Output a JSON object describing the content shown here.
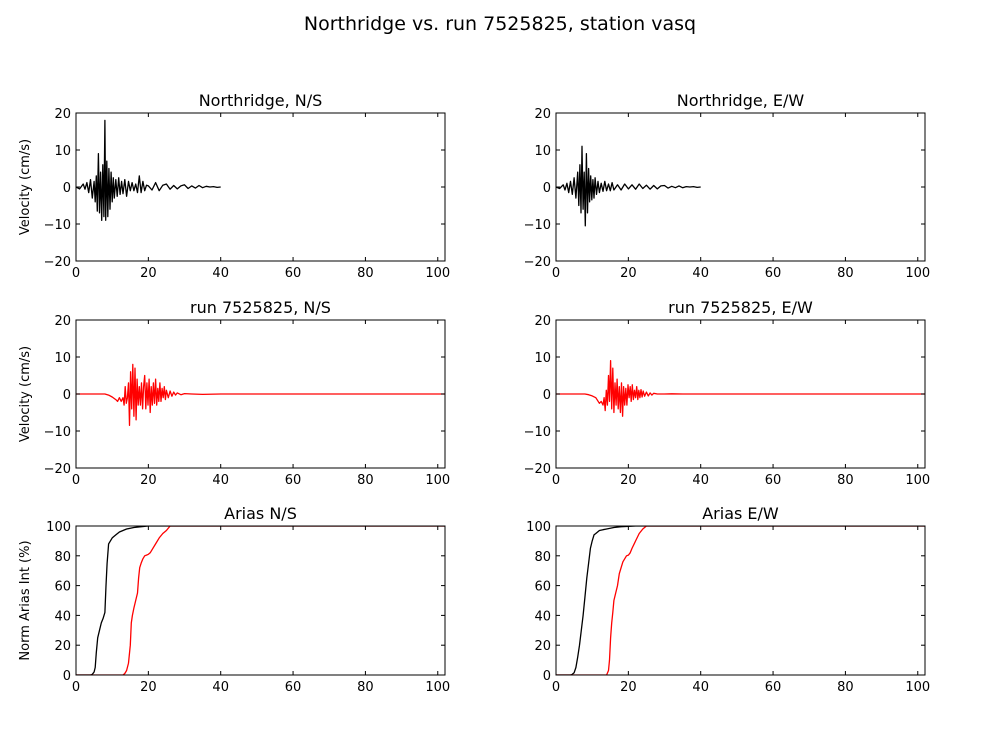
{
  "figure": {
    "title": "Northridge vs. run 7525825, station vasq"
  },
  "chart_data": [
    {
      "type": "line",
      "title": "Northridge, N/S",
      "xlabel": "",
      "ylabel": "Velocity (cm/s)",
      "xlim": [
        0,
        102
      ],
      "ylim": [
        -20,
        20
      ],
      "xticks": [
        0,
        20,
        40,
        60,
        80,
        100
      ],
      "yticks": [
        -20,
        -10,
        0,
        10,
        20
      ],
      "series": [
        {
          "color": "#000000",
          "x": [
            0,
            1,
            2,
            2.5,
            3,
            3.5,
            4,
            4.5,
            5,
            5.3,
            5.6,
            5.9,
            6.2,
            6.5,
            6.8,
            7.1,
            7.4,
            7.7,
            8,
            8.2,
            8.5,
            8.8,
            9.1,
            9.4,
            9.7,
            10,
            10.3,
            10.6,
            11,
            11.4,
            11.8,
            12.2,
            12.6,
            13,
            13.5,
            14,
            14.5,
            15,
            15.5,
            16,
            16.5,
            17,
            17.5,
            18,
            18.5,
            19,
            19.5,
            20,
            21,
            22,
            23,
            24,
            25,
            26,
            27,
            28,
            29,
            30,
            31,
            32,
            33,
            34,
            35,
            36,
            37,
            38,
            39,
            40
          ],
          "y": [
            0,
            -0.5,
            0.8,
            -0.6,
            1.2,
            -1.5,
            2,
            -3,
            1.5,
            -4,
            3,
            -6.5,
            9,
            -7,
            4,
            -9,
            6,
            -8,
            18,
            -9,
            7,
            -8,
            5,
            -6,
            4,
            -4,
            2.5,
            -3,
            2,
            -2.5,
            2.5,
            -2,
            1.5,
            -1.8,
            2,
            -2.5,
            1.5,
            -1,
            1.2,
            -1,
            0.8,
            -1.5,
            3,
            -1.5,
            1.5,
            -1,
            0.5,
            0.3,
            -0.8,
            1.2,
            -1,
            0.5,
            0.8,
            -0.6,
            0.4,
            -0.5,
            0.3,
            0.6,
            -0.4,
            0.3,
            -0.3,
            0.4,
            -0.2,
            0.2,
            0,
            0.1,
            -0.1,
            0
          ]
        }
      ]
    },
    {
      "type": "line",
      "title": "Northridge, E/W",
      "xlabel": "",
      "ylabel": "",
      "xlim": [
        0,
        102
      ],
      "ylim": [
        -20,
        20
      ],
      "xticks": [
        0,
        20,
        40,
        60,
        80,
        100
      ],
      "yticks": [
        -20,
        -10,
        0,
        10,
        20
      ],
      "series": [
        {
          "color": "#000000",
          "x": [
            0,
            1,
            2,
            2.5,
            3,
            3.5,
            4,
            4.5,
            5,
            5.5,
            6,
            6.3,
            6.6,
            6.9,
            7.2,
            7.5,
            7.8,
            8.1,
            8.4,
            8.7,
            9,
            9.3,
            9.6,
            9.9,
            10.2,
            10.5,
            10.8,
            11.2,
            11.6,
            12,
            12.5,
            13,
            13.5,
            14,
            14.5,
            15,
            15.5,
            16,
            17,
            18,
            19,
            20,
            21,
            22,
            23,
            24,
            25,
            26,
            27,
            28,
            29,
            30,
            31,
            32,
            33,
            34,
            35,
            36,
            37,
            38,
            39,
            40
          ],
          "y": [
            0,
            -0.4,
            0.6,
            -0.8,
            1,
            -1.5,
            1.5,
            -2,
            2.5,
            -3,
            4,
            -5,
            6,
            -7,
            11,
            -6,
            4,
            -10.5,
            9,
            -7,
            5,
            -4,
            3,
            -3.5,
            2,
            -3,
            2.5,
            -2,
            1.5,
            -1.5,
            1,
            -1.2,
            1.5,
            -1,
            0.8,
            -1,
            1.2,
            -0.8,
            0.6,
            -0.8,
            0.8,
            -0.5,
            0.6,
            -0.6,
            0.8,
            -0.4,
            0.5,
            -0.6,
            0.4,
            -0.5,
            0.3,
            0.4,
            -0.3,
            0.2,
            -0.2,
            0.3,
            -0.2,
            0.1,
            0,
            0.1,
            -0.1,
            0
          ]
        }
      ]
    },
    {
      "type": "line",
      "title": "run 7525825, N/S",
      "xlabel": "",
      "ylabel": "Velocity (cm/s)",
      "xlim": [
        0,
        102
      ],
      "ylim": [
        -20,
        20
      ],
      "xticks": [
        0,
        20,
        40,
        60,
        80,
        100
      ],
      "yticks": [
        -20,
        -10,
        0,
        10,
        20
      ],
      "series": [
        {
          "color": "#ff0000",
          "x": [
            0,
            8,
            9,
            10,
            11,
            11.5,
            12,
            12.5,
            13,
            13.3,
            13.6,
            13.9,
            14.2,
            14.5,
            14.8,
            15.1,
            15.4,
            15.7,
            16,
            16.3,
            16.6,
            16.9,
            17.2,
            17.5,
            17.8,
            18.1,
            18.4,
            18.7,
            19,
            19.3,
            19.6,
            19.9,
            20.2,
            20.5,
            20.8,
            21.1,
            21.4,
            21.7,
            22,
            22.3,
            22.6,
            22.9,
            23.2,
            23.5,
            23.8,
            24.1,
            24.4,
            24.7,
            25,
            25.5,
            26,
            26.5,
            27,
            27.5,
            28,
            29,
            30,
            32,
            35,
            40,
            50,
            60,
            70,
            80,
            90,
            100,
            102
          ],
          "y": [
            0,
            0,
            -0.3,
            -0.8,
            -1.5,
            -2,
            -1,
            -2,
            -1,
            -3,
            2,
            -2.5,
            -1,
            3,
            -8.5,
            6,
            -4,
            8,
            -6,
            7,
            -7,
            4,
            -3,
            2,
            -3,
            3,
            -4,
            2,
            5,
            -4,
            3,
            -3,
            4,
            -5,
            2,
            -3,
            3,
            -2.5,
            4,
            -3,
            1.5,
            -2,
            3,
            -2,
            1.5,
            -1,
            2,
            -1.5,
            1,
            -1,
            0.8,
            -0.6,
            0.5,
            -0.3,
            0.3,
            -0.2,
            0.1,
            0,
            -0.1,
            0,
            0,
            0,
            0,
            0,
            0,
            0,
            0
          ]
        }
      ]
    },
    {
      "type": "line",
      "title": "run 7525825, E/W",
      "xlabel": "",
      "ylabel": "",
      "xlim": [
        0,
        102
      ],
      "ylim": [
        -20,
        20
      ],
      "xticks": [
        0,
        20,
        40,
        60,
        80,
        100
      ],
      "yticks": [
        -20,
        -10,
        0,
        10,
        20
      ],
      "series": [
        {
          "color": "#ff0000",
          "x": [
            0,
            8,
            9,
            10,
            11,
            12,
            12.5,
            13,
            13.3,
            13.6,
            13.9,
            14.2,
            14.5,
            14.8,
            15.1,
            15.4,
            15.7,
            16,
            16.3,
            16.6,
            16.9,
            17.2,
            17.5,
            17.8,
            18.1,
            18.4,
            18.7,
            19,
            19.3,
            19.6,
            19.9,
            20.2,
            20.5,
            20.8,
            21.1,
            21.4,
            21.7,
            22,
            22.3,
            22.6,
            22.9,
            23.2,
            23.5,
            23.8,
            24.1,
            24.5,
            25,
            25.5,
            26,
            26.5,
            27,
            28,
            30,
            32,
            35,
            40,
            50,
            60,
            70,
            80,
            90,
            100,
            102
          ],
          "y": [
            0,
            0,
            -0.2,
            -0.5,
            -1,
            -2.5,
            -2,
            -3,
            -1,
            -4.5,
            1,
            -3,
            5,
            -2,
            9,
            -4,
            7,
            -5,
            3,
            -3,
            4,
            -4,
            2,
            -5,
            3,
            -6,
            2,
            -3,
            1.5,
            -3,
            2.5,
            -1,
            2,
            -2,
            2.5,
            -1.5,
            1,
            -1,
            2,
            -1.5,
            1,
            -1,
            1.2,
            -0.8,
            0.8,
            -0.6,
            0.5,
            -0.5,
            0.3,
            -0.3,
            0.2,
            0,
            0,
            0.05,
            0,
            0,
            0,
            0,
            0,
            0,
            0,
            0,
            0
          ]
        }
      ]
    },
    {
      "type": "line",
      "title": "Arias N/S",
      "xlabel": "",
      "ylabel": "Norm Arias Int (%)",
      "xlim": [
        0,
        102
      ],
      "ylim": [
        0,
        100
      ],
      "xticks": [
        0,
        20,
        40,
        60,
        80,
        100
      ],
      "yticks": [
        0,
        20,
        40,
        60,
        80,
        100
      ],
      "series": [
        {
          "color": "#000000",
          "x": [
            0,
            4,
            4.5,
            5,
            5.3,
            5.6,
            6,
            6.5,
            7,
            7.5,
            8,
            8.3,
            8.6,
            9,
            9.5,
            10,
            11,
            12,
            13,
            14,
            16,
            18,
            20,
            22,
            102
          ],
          "y": [
            0,
            0,
            0.5,
            2,
            5,
            15,
            25,
            30,
            35,
            38,
            42,
            60,
            75,
            88,
            90,
            92,
            94,
            96,
            97,
            98,
            99,
            99.5,
            100,
            100,
            100
          ]
        },
        {
          "color": "#ff0000",
          "x": [
            0,
            13,
            13.5,
            14,
            14.5,
            15,
            15.3,
            15.6,
            16,
            16.5,
            17,
            17.3,
            17.6,
            18,
            18.5,
            19,
            19.5,
            20,
            20.5,
            21,
            22,
            23,
            24,
            25,
            26,
            102
          ],
          "y": [
            0,
            0,
            1,
            3,
            8,
            20,
            35,
            40,
            45,
            50,
            55,
            65,
            72,
            75,
            78,
            80,
            80.5,
            81,
            82,
            84,
            88,
            92,
            95,
            97,
            100,
            100
          ]
        }
      ]
    },
    {
      "type": "line",
      "title": "Arias E/W",
      "xlabel": "",
      "ylabel": "",
      "xlim": [
        0,
        102
      ],
      "ylim": [
        0,
        100
      ],
      "xticks": [
        0,
        20,
        40,
        60,
        80,
        100
      ],
      "yticks": [
        0,
        20,
        40,
        60,
        80,
        100
      ],
      "series": [
        {
          "color": "#000000",
          "x": [
            0,
            4,
            4.5,
            5,
            5.5,
            6,
            6.5,
            7,
            7.5,
            8,
            8.5,
            9,
            9.5,
            10,
            10.5,
            11,
            12,
            13,
            14,
            16,
            18,
            20,
            22,
            25,
            102
          ],
          "y": [
            0,
            0,
            0.5,
            1.5,
            5,
            12,
            20,
            30,
            40,
            52,
            65,
            75,
            85,
            90,
            94,
            95,
            97,
            97.5,
            98,
            99,
            99.5,
            99.8,
            100,
            100,
            100
          ]
        },
        {
          "color": "#ff0000",
          "x": [
            0,
            14,
            14.5,
            14.8,
            15.1,
            15.4,
            15.7,
            16,
            16.5,
            17,
            17.5,
            18,
            18.5,
            19,
            19.5,
            20,
            20.5,
            21,
            22,
            23,
            24,
            25,
            26,
            102
          ],
          "y": [
            0,
            0,
            3,
            10,
            25,
            35,
            42,
            50,
            55,
            60,
            68,
            72,
            76,
            78,
            80,
            80.5,
            82,
            85,
            90,
            95,
            98,
            100,
            100,
            100
          ]
        }
      ]
    }
  ]
}
